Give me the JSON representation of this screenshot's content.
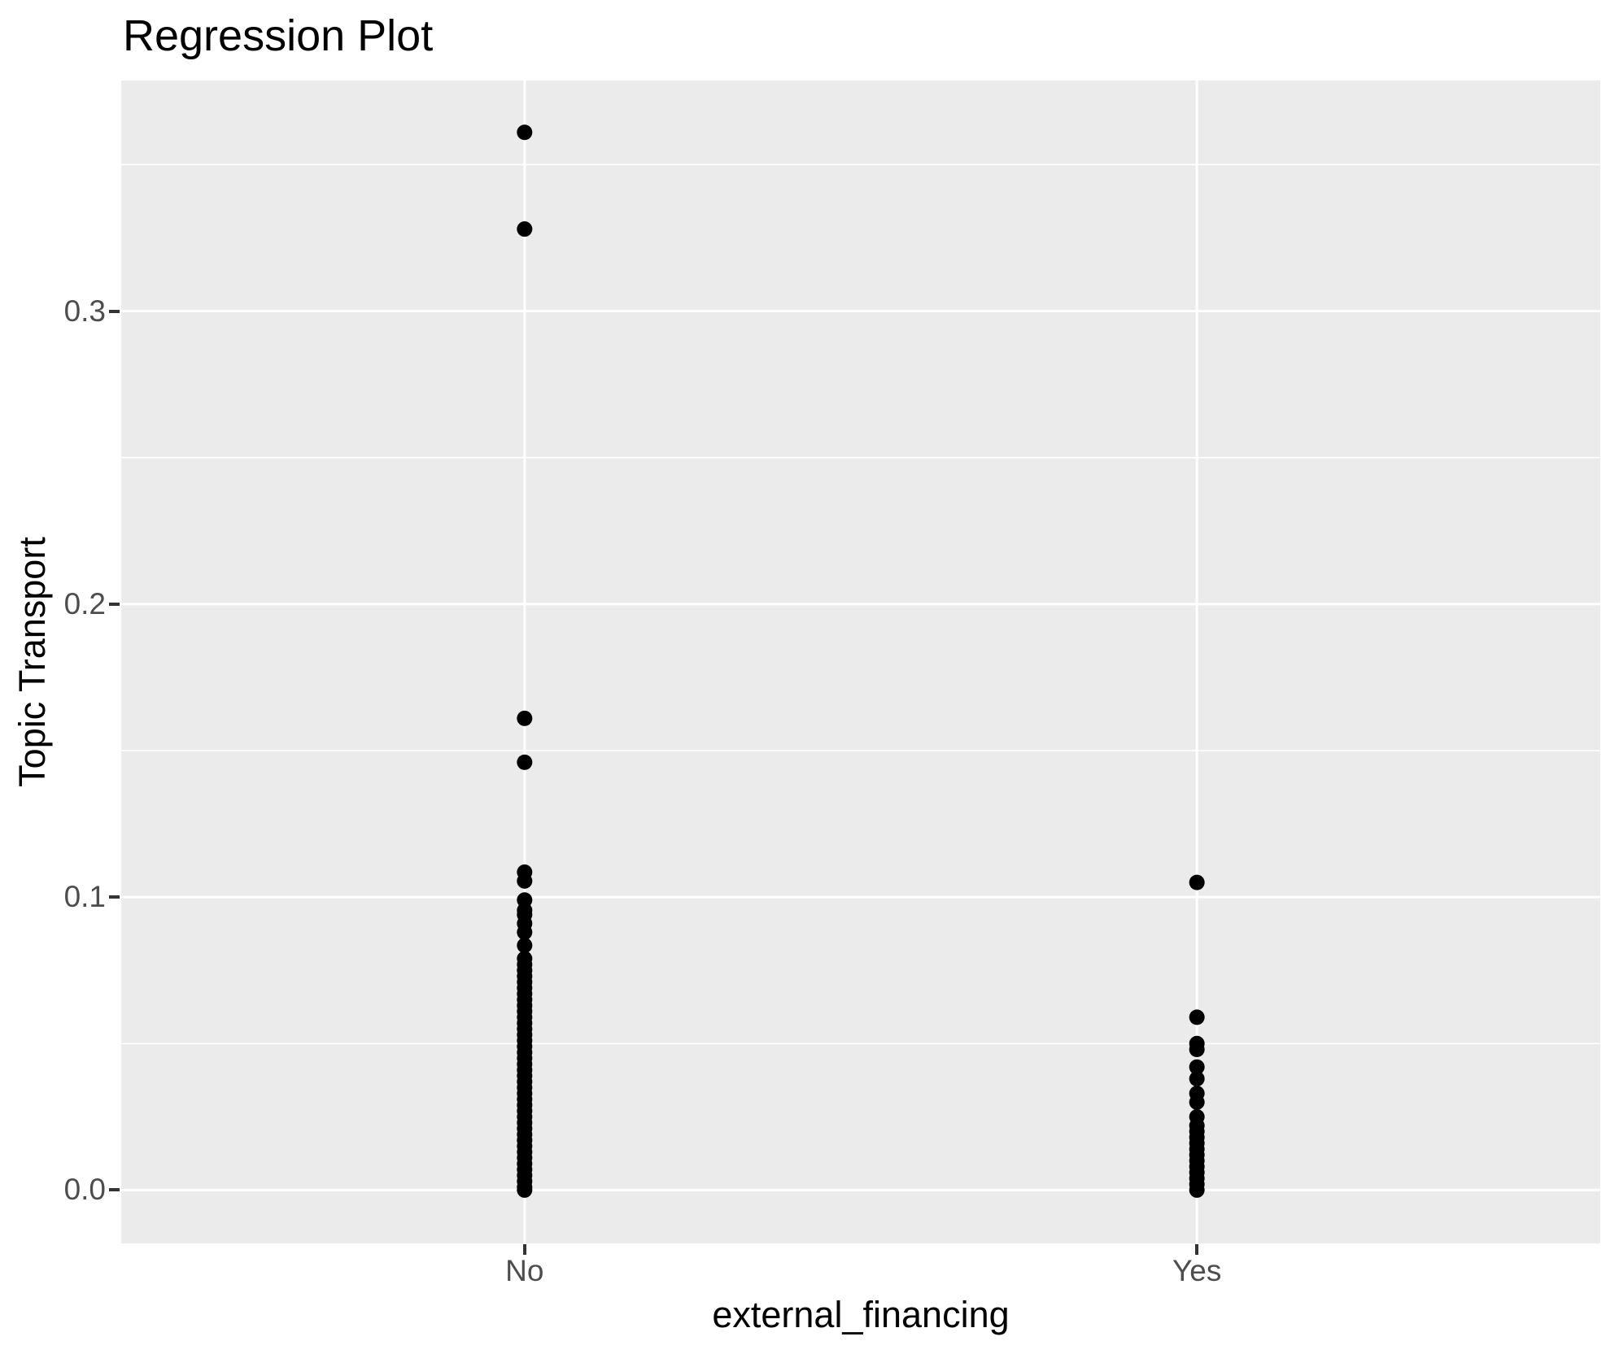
{
  "chart_data": {
    "type": "scatter",
    "title": "Regression Plot",
    "xlabel": "external_financing",
    "ylabel": "Topic Transport",
    "categories": [
      "No",
      "Yes"
    ],
    "ylim": [
      -0.0182,
      0.3787
    ],
    "yticks": {
      "values": [
        0.0,
        0.1,
        0.2,
        0.3
      ],
      "labels": [
        "0.0",
        "0.1",
        "0.2",
        "0.3"
      ]
    },
    "yminor": [
      0.05,
      0.15,
      0.25,
      0.35
    ],
    "grid": "white major and minor horizontal lines, white vertical line per category, shown on gray panel",
    "legend_position": "none",
    "panel_bg": "#EBEBEB",
    "grid_color": "#FFFFFF",
    "point_color": "#000000",
    "tick_label_color": "#4D4D4D",
    "tick_mark_color": "#333333",
    "series": [
      {
        "name": "No",
        "values": [
          0.361,
          0.328,
          0.161,
          0.146,
          0.1085,
          0.1055,
          0.099,
          0.0955,
          0.094,
          0.091,
          0.088,
          0.0835,
          0.079,
          0.077,
          0.075,
          0.073,
          0.071,
          0.069,
          0.067,
          0.065,
          0.063,
          0.061,
          0.059,
          0.057,
          0.055,
          0.053,
          0.051,
          0.049,
          0.047,
          0.045,
          0.043,
          0.041,
          0.039,
          0.037,
          0.035,
          0.033,
          0.031,
          0.029,
          0.027,
          0.025,
          0.023,
          0.021,
          0.019,
          0.017,
          0.015,
          0.013,
          0.011,
          0.009,
          0.007,
          0.005,
          0.003,
          0.001,
          0.0
        ]
      },
      {
        "name": "Yes",
        "values": [
          0.105,
          0.059,
          0.05,
          0.048,
          0.042,
          0.038,
          0.033,
          0.03,
          0.025,
          0.022,
          0.02,
          0.018,
          0.016,
          0.014,
          0.012,
          0.01,
          0.008,
          0.006,
          0.004,
          0.002,
          0.0
        ]
      }
    ]
  }
}
